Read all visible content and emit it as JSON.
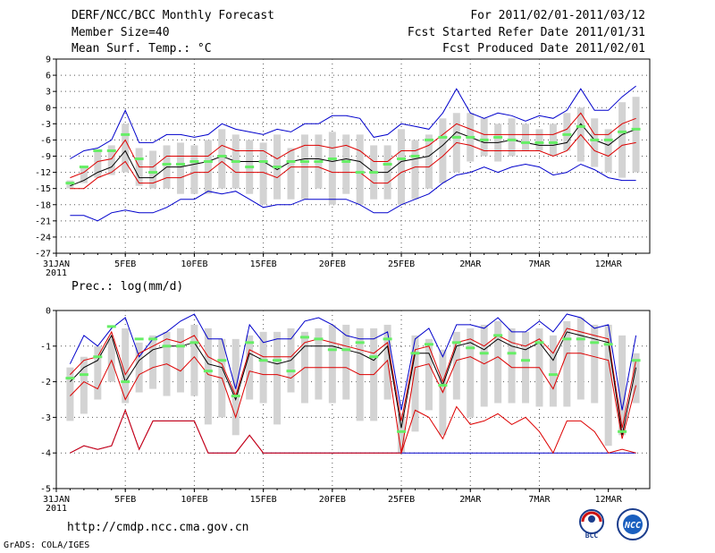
{
  "header": {
    "title": "DERF/NCC/BCC Monthly Forecast",
    "member_size": "Member Size=40",
    "variable": "Mean Surf. Temp.: °C",
    "period": "For 2011/02/01-2011/03/12",
    "started": "Fcst Started Refer Date 2011/01/31",
    "produced": "Fcst Produced Date 2011/02/01"
  },
  "footer": {
    "url": "http://cmdp.ncc.cma.gov.cn",
    "credit": "GrADS: COLA/IGES",
    "logo_left": "BCC",
    "logo_right": "NCC"
  },
  "colors": {
    "box": "#d3d3d3",
    "mean": "#000000",
    "spread": "#dd0000",
    "extreme": "#0000cc",
    "obs": "#66ee66",
    "grid": "#555555"
  },
  "chart_data": [
    {
      "type": "line",
      "title": "Mean Surf. Temp.: °C",
      "x_tick_labels": [
        "31JAN",
        "5FEB",
        "10FEB",
        "15FEB",
        "20FEB",
        "25FEB",
        "2MAR",
        "7MAR",
        "12MAR"
      ],
      "x_year_label": "2011",
      "ylim": [
        -27,
        9
      ],
      "yticks": [
        9,
        6,
        3,
        0,
        -3,
        -6,
        -9,
        -12,
        -15,
        -18,
        -21,
        -24,
        -27
      ],
      "series": [
        {
          "name": "box_top",
          "values": [
            -13.5,
            -11,
            -8,
            -7,
            -3,
            -7.5,
            -8,
            -7,
            -6.5,
            -7,
            -6,
            -4,
            -5,
            -6,
            -6.5,
            -5,
            -7.5,
            -5,
            -5,
            -4.5,
            -5,
            -5,
            -7,
            -7,
            -4,
            -6,
            -5,
            -2,
            -1,
            -1,
            -2,
            -3,
            -2,
            -3,
            -4,
            -3,
            -1,
            0,
            -2,
            -4,
            1,
            2
          ]
        },
        {
          "name": "box_bottom",
          "values": [
            -15,
            -14,
            -13,
            -12.5,
            -12,
            -14.5,
            -15,
            -15,
            -16,
            -16,
            -16,
            -15,
            -15,
            -16,
            -18,
            -17,
            -17,
            -17,
            -15,
            -18,
            -16,
            -18,
            -17,
            -17,
            -18,
            -17,
            -15,
            -14,
            -12,
            -10,
            -9,
            -10,
            -9,
            -8,
            -8,
            -9,
            -8,
            -10,
            -11,
            -12,
            -13,
            -12
          ]
        },
        {
          "name": "ensemble_max",
          "values": [
            -9.5,
            -8,
            -7.5,
            -6,
            -0.5,
            -6.5,
            -6.5,
            -5,
            -5,
            -5.5,
            -5,
            -3,
            -4,
            -4.5,
            -5,
            -4,
            -4.5,
            -3,
            -3,
            -1.5,
            -1.5,
            -2,
            -5.5,
            -5,
            -3,
            -3.5,
            -4,
            -1,
            3.5,
            -1,
            -2,
            -1,
            -1.5,
            -2.5,
            -1.5,
            -2,
            -0.5,
            3.5,
            -0.5,
            -0.5,
            2,
            4
          ]
        },
        {
          "name": "spread_upper",
          "values": [
            -13,
            -12,
            -10,
            -9.5,
            -6,
            -11,
            -11,
            -9,
            -9,
            -9,
            -9,
            -7,
            -8,
            -8,
            -8,
            -9.5,
            -8,
            -7,
            -7,
            -7.5,
            -7,
            -8,
            -10,
            -10,
            -8,
            -8,
            -7,
            -5,
            -3,
            -4,
            -5,
            -5,
            -5,
            -5,
            -5,
            -5,
            -4,
            -1,
            -5,
            -5,
            -3,
            -2
          ]
        },
        {
          "name": "mean",
          "values": [
            -14.5,
            -13.5,
            -12,
            -11,
            -8,
            -13,
            -13,
            -11,
            -11,
            -10.5,
            -10,
            -9,
            -10,
            -10,
            -10,
            -11.5,
            -10,
            -9.5,
            -9.5,
            -10,
            -9.5,
            -10,
            -12,
            -12,
            -10,
            -9.5,
            -9,
            -7,
            -4.5,
            -5.5,
            -6.5,
            -6.5,
            -6,
            -6.5,
            -7,
            -7,
            -6.5,
            -3,
            -6,
            -7,
            -5,
            -4
          ]
        },
        {
          "name": "spread_lower",
          "values": [
            -15,
            -15,
            -13,
            -12,
            -10,
            -14,
            -14,
            -13,
            -13,
            -12,
            -12,
            -10,
            -12,
            -12,
            -12,
            -13,
            -11,
            -11,
            -11,
            -12,
            -12,
            -12,
            -14,
            -14,
            -12,
            -11,
            -11,
            -9,
            -6.5,
            -7,
            -8,
            -8,
            -8,
            -8,
            -8,
            -9,
            -8,
            -5,
            -8,
            -9,
            -7,
            -6.5
          ]
        },
        {
          "name": "ensemble_min",
          "values": [
            -20,
            -20,
            -21,
            -19.5,
            -19,
            -19.5,
            -19.5,
            -18.5,
            -17,
            -17,
            -15.5,
            -16,
            -15.5,
            -17,
            -18.5,
            -18,
            -18,
            -17,
            -17,
            -17,
            -17,
            -18,
            -19.5,
            -19.5,
            -18,
            -17,
            -16,
            -14,
            -12.5,
            -12,
            -11,
            -12,
            -11,
            -10.5,
            -11,
            -12.5,
            -12,
            -10.5,
            -11.5,
            -13,
            -13.5,
            -13.5
          ]
        },
        {
          "name": "observed",
          "values": [
            -14,
            -11,
            -8,
            -8,
            -5,
            -9.5,
            -12,
            -10.5,
            -10.5,
            -10,
            -10,
            -9,
            -10,
            -11,
            -10,
            -11,
            -10,
            -10,
            -10,
            -9.5,
            -10,
            -12,
            -12,
            -10.5,
            -9.5,
            -9,
            -6,
            -5.5,
            -5.5,
            -5.5,
            -6,
            -5.5,
            -6,
            -6.5,
            -6.5,
            -6.5,
            -5,
            -3.5,
            -6,
            -6,
            -4.5,
            -4
          ]
        }
      ]
    },
    {
      "type": "line",
      "title": "Prec.: log(mm/d)",
      "x_tick_labels": [
        "31JAN",
        "5FEB",
        "10FEB",
        "15FEB",
        "20FEB",
        "25FEB",
        "2MAR",
        "7MAR",
        "12MAR"
      ],
      "x_year_label": "2011",
      "ylim": [
        -5,
        0
      ],
      "yticks": [
        0,
        -1,
        -2,
        -3,
        -4,
        -5
      ],
      "series": [
        {
          "name": "box_top",
          "values": [
            -1.6,
            -1.3,
            -1,
            -0.8,
            -0.5,
            -0.9,
            -0.7,
            -0.6,
            -0.5,
            -0.4,
            -0.5,
            -0.8,
            -0.8,
            -0.7,
            -0.6,
            -0.6,
            -0.5,
            -0.6,
            -0.5,
            -0.4,
            -0.4,
            -0.5,
            -0.5,
            -0.4,
            -2.9,
            -0.7,
            -0.8,
            -1.1,
            -0.6,
            -0.5,
            -0.4,
            -0.3,
            -0.5,
            -0.6,
            -0.5,
            -0.7,
            -0.3,
            -0.2,
            -0.4,
            -0.4,
            -0.7,
            -1.2
          ]
        },
        {
          "name": "box_bottom",
          "values": [
            -3.1,
            -2.9,
            -2.5,
            -2,
            -2.6,
            -2.3,
            -2.2,
            -2.4,
            -2.3,
            -2.4,
            -3.2,
            -3,
            -3.5,
            -2.5,
            -2.6,
            -3.2,
            -2.3,
            -2.6,
            -2.5,
            -2.6,
            -2.5,
            -3.1,
            -3.1,
            -2.5,
            -4,
            -3.4,
            -2.8,
            -3.5,
            -2.5,
            -3,
            -2.7,
            -2.6,
            -2.6,
            -2.6,
            -2.7,
            -2.7,
            -2.7,
            -2.5,
            -2.6,
            -3.8,
            -3.5,
            -2.6
          ]
        },
        {
          "name": "ensemble_max",
          "values": [
            -1.5,
            -0.7,
            -1,
            -0.5,
            -0.2,
            -1.3,
            -0.8,
            -0.6,
            -0.3,
            -0.1,
            -0.8,
            -0.8,
            -2.2,
            -0.4,
            -0.9,
            -0.8,
            -0.8,
            -0.3,
            -0.2,
            -0.4,
            -0.7,
            -0.8,
            -0.8,
            -0.6,
            -2.8,
            -0.8,
            -0.5,
            -1.3,
            -0.4,
            -0.4,
            -0.5,
            -0.2,
            -0.6,
            -0.6,
            -0.3,
            -0.6,
            -0.1,
            -0.2,
            -0.5,
            -0.4,
            -2.8,
            -0.7
          ]
        },
        {
          "name": "spread_upper",
          "values": [
            -1.8,
            -1.4,
            -1.3,
            -0.6,
            -1.8,
            -1.2,
            -1.0,
            -0.8,
            -0.9,
            -0.7,
            -1.3,
            -1.5,
            -2.4,
            -1.1,
            -1.3,
            -1.3,
            -1.3,
            -0.9,
            -0.8,
            -0.9,
            -1.0,
            -1.1,
            -1.2,
            -0.9,
            -3.1,
            -1.1,
            -1.0,
            -2.0,
            -0.9,
            -0.8,
            -1.0,
            -0.7,
            -0.9,
            -1.0,
            -0.8,
            -1.2,
            -0.5,
            -0.6,
            -0.7,
            -0.8,
            -3.3,
            -1.4
          ]
        },
        {
          "name": "mean",
          "values": [
            -2.0,
            -1.6,
            -1.4,
            -0.7,
            -2.0,
            -1.4,
            -1.1,
            -1.0,
            -1.0,
            -0.9,
            -1.5,
            -1.6,
            -2.5,
            -1.2,
            -1.4,
            -1.5,
            -1.4,
            -1.0,
            -1.0,
            -1.0,
            -1.1,
            -1.2,
            -1.4,
            -1.0,
            -3.3,
            -1.2,
            -1.2,
            -2.1,
            -1.0,
            -0.9,
            -1.1,
            -0.8,
            -1.0,
            -1.1,
            -0.9,
            -1.4,
            -0.6,
            -0.7,
            -0.8,
            -0.9,
            -3.5,
            -1.6
          ]
        },
        {
          "name": "spread_lower",
          "values": [
            -2.4,
            -2.0,
            -2.2,
            -1.4,
            -2.5,
            -1.8,
            -1.6,
            -1.5,
            -1.7,
            -1.3,
            -1.8,
            -1.9,
            -3.0,
            -1.7,
            -1.8,
            -1.8,
            -1.9,
            -1.6,
            -1.6,
            -1.6,
            -1.6,
            -1.8,
            -1.8,
            -1.4,
            -4.0,
            -1.6,
            -1.5,
            -2.3,
            -1.4,
            -1.3,
            -1.5,
            -1.3,
            -1.6,
            -1.6,
            -1.6,
            -2.2,
            -1.2,
            -1.2,
            -1.3,
            -1.4,
            -3.6,
            -2.1
          ]
        },
        {
          "name": "ensemble_min",
          "values": [
            -4,
            -3.8,
            -3.9,
            -3.8,
            -2.8,
            -3.9,
            -3.1,
            -3.1,
            -3.1,
            -3.1,
            -4,
            -4,
            -4,
            -3.5,
            -4,
            -4,
            -4,
            -4,
            -4,
            -4,
            -4,
            -4,
            -4,
            -4,
            -4,
            -4,
            -4,
            -4,
            -4,
            -4,
            -4,
            -4,
            -4,
            -4,
            -4,
            -4,
            -4,
            -4,
            -4,
            -4,
            -4,
            -4
          ]
        },
        {
          "name": "lowest_member",
          "values": [
            -4,
            -3.8,
            -3.9,
            -3.8,
            -2.8,
            -3.9,
            -3.1,
            -3.1,
            -3.1,
            -3.1,
            -4,
            -4,
            -4,
            -3.5,
            -4,
            -4,
            -4,
            -4,
            -4,
            -4,
            -4,
            -4,
            -4,
            -4,
            -4,
            -2.8,
            -3.0,
            -3.6,
            -2.7,
            -3.2,
            -3.1,
            -2.9,
            -3.2,
            -3.0,
            -3.4,
            -4,
            -3.1,
            -3.1,
            -3.4,
            -4,
            -3.9,
            -4
          ]
        },
        {
          "name": "observed",
          "values": [
            -1.9,
            -1.8,
            -1.3,
            -0.45,
            -2.0,
            -0.8,
            -0.8,
            -1.0,
            -1.0,
            -0.9,
            -1.7,
            -1.4,
            -2.4,
            -0.9,
            -1.4,
            -1.4,
            -1.7,
            -0.75,
            -0.8,
            -1.1,
            -1.1,
            -0.9,
            -1.3,
            -0.8,
            -3.4,
            -1.2,
            -0.95,
            -2.1,
            -0.9,
            -1.05,
            -1.2,
            -0.7,
            -1.2,
            -1.4,
            -0.9,
            -1.8,
            -0.8,
            -0.8,
            -0.9,
            -0.95,
            -3.4,
            -1.4
          ]
        }
      ]
    }
  ]
}
